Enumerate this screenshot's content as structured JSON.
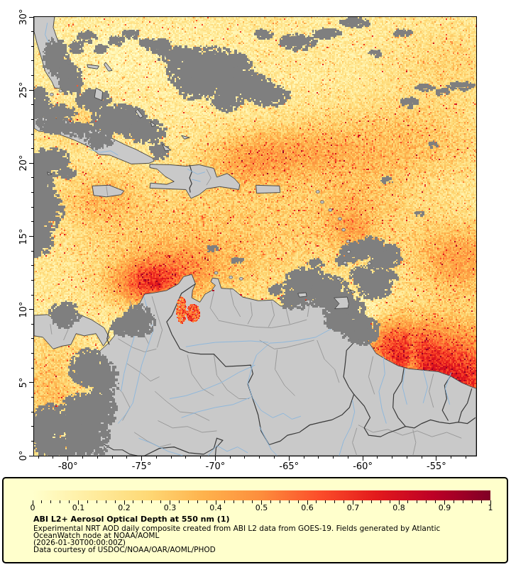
{
  "legend": {
    "title": "ABI L2+ Aerosol Optical Depth at 550 nm (1)",
    "subtitle1": "Experimental NRT AOD daily composite created from ABI L2 data from GOES-19. Fields generated by Atlantic",
    "subtitle2": "OceanWatch node at NOAA/AOML",
    "timestamp": "(2026-01-30T00:00:00Z)",
    "credit": "Data courtesy of USDOC/NOAA/OAR/AOML/PHOD"
  },
  "axes": {
    "lat_tick_labels": [
      "30°",
      "25°",
      "20°",
      "15°",
      "10°",
      "5°",
      "0°"
    ],
    "lat_tick_values": [
      30,
      25,
      20,
      15,
      10,
      5,
      0
    ],
    "lon_tick_labels": [
      "-80°",
      "-75°",
      "-70°",
      "-65°",
      "-60°",
      "-55°"
    ],
    "lon_tick_values": [
      -80,
      -75,
      -70,
      -65,
      -60,
      -55
    ]
  },
  "colorbar": {
    "tick_labels": [
      "0",
      "0.1",
      "0.2",
      "0.3",
      "0.4",
      "0.5",
      "0.6",
      "0.7",
      "0.8",
      "0.9",
      "1"
    ],
    "tick_values": [
      0,
      0.1,
      0.2,
      0.3,
      0.4,
      0.5,
      0.6,
      0.7,
      0.8,
      0.9,
      1
    ]
  },
  "colors": {
    "page_bg": "#ffffff",
    "legend_bg": "#ffffcc",
    "frame": "#000000",
    "land": "#c9c9c9",
    "coastline": "#4a4a4a",
    "cloud": "#7f7f7f",
    "river": "#8fb8dc",
    "state_border": "#9a9a9a",
    "country_border": "#3a3a3a",
    "text": "#000000"
  },
  "chart_data": {
    "type": "heatmap",
    "title": "ABI L2+ Aerosol Optical Depth at 550 nm (1)",
    "variable": "Aerosol Optical Depth (AOD) at 550 nm from GOES-19 ABI L2",
    "extent": {
      "lon_min": -82.3,
      "lon_max": -52.3,
      "lat_min": 0,
      "lat_max": 30
    },
    "colorbar_range": [
      0,
      1
    ],
    "colorbar_ticks": [
      0,
      0.1,
      0.2,
      0.3,
      0.4,
      0.5,
      0.6,
      0.7,
      0.8,
      0.9,
      1
    ],
    "colormap_name": "YlOrRd",
    "colormap_stops": [
      {
        "pos": 0.0,
        "color": "#ffffcc"
      },
      {
        "pos": 0.125,
        "color": "#ffeda0"
      },
      {
        "pos": 0.25,
        "color": "#fed976"
      },
      {
        "pos": 0.375,
        "color": "#feb24c"
      },
      {
        "pos": 0.5,
        "color": "#fd8d3c"
      },
      {
        "pos": 0.625,
        "color": "#fc4e2a"
      },
      {
        "pos": 0.75,
        "color": "#e31a1c"
      },
      {
        "pos": 0.875,
        "color": "#bd0026"
      },
      {
        "pos": 1.0,
        "color": "#800026"
      }
    ],
    "no_data_land_color": "#c9c9c9",
    "cloud_mask_color": "#7f7f7f",
    "legend_position": "bottom",
    "regions_approx_aod": [
      {
        "name": "North Atlantic / Bahamas (lat 23-30)",
        "aod": 0.15
      },
      {
        "name": "NE Atlantic sector (lon -60 to -52, lat 20-26)",
        "aod": 0.3
      },
      {
        "name": "Central Caribbean (lat 12-18)",
        "aod": 0.35
      },
      {
        "name": "North of Hispaniola / Puerto Rico (lat 19-22)",
        "aod": 0.4
      },
      {
        "name": "Southern Caribbean off Colombia (lon -77 to -72, lat 10-13)",
        "aod": 0.6
      },
      {
        "name": "Atlantic off Guyana / Suriname / French Guiana (lon -58 to -52, lat 2-9)",
        "aod": 0.75
      },
      {
        "name": "Pale streak in plume near lon -56.5, lat 2-8",
        "aod": 0.3
      },
      {
        "name": "Eastern Pacific (lon -82 to -78, lat 1-8)",
        "aod": 0.3
      },
      {
        "name": "Lake Maracaibo and area south (over land)",
        "aod": 0.55
      }
    ]
  }
}
